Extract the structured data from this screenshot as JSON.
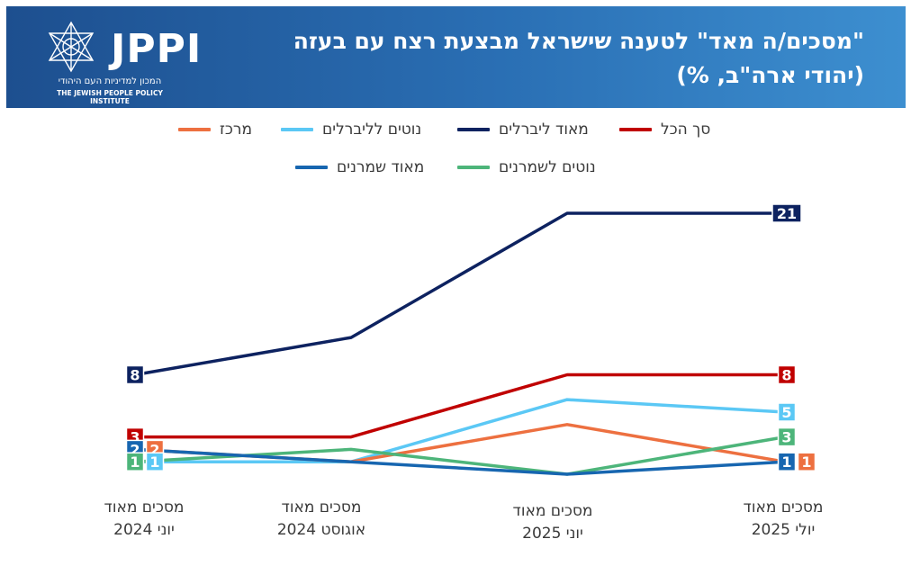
{
  "header": {
    "title_line1": "\"מסכים/ה מאד\" לטענה שישראל מבצעת רצח עם בעזה",
    "title_line2": "(יהודי ארה\"ב, %)",
    "logo": {
      "name": "JPPI",
      "subtitle_he": "המכון למדיניות העם היהודי",
      "subtitle_en": "THE JEWISH PEOPLE POLICY INSTITUTE"
    }
  },
  "colors": {
    "header_start": "#1d4f8f",
    "header_end": "#3d8fd0"
  },
  "chart_data": {
    "type": "line",
    "categories": [
      "מסכים מאוד יוני 2024",
      "מסכים מאוד אוגוסט 2024",
      "מסכים מאוד יוני 2025",
      "מסכים מאוד יולי 2025"
    ],
    "category_lines": [
      [
        "מסכים מאוד",
        "יוני 2024"
      ],
      [
        "מסכים מאוד",
        "אוגוסט 2024"
      ],
      [
        "מסכים מאוד",
        "יוני 2025"
      ],
      [
        "מסכים מאוד",
        "יולי 2025"
      ]
    ],
    "series": [
      {
        "name": "סך הכל",
        "color": "#c00000",
        "values": [
          3,
          3,
          8,
          8
        ]
      },
      {
        "name": "מאוד ליברלים",
        "color": "#0d2260",
        "values": [
          8,
          11,
          21,
          21
        ]
      },
      {
        "name": "נוטים לליברלים",
        "color": "#5bc8f5",
        "values": [
          1,
          1,
          6,
          5
        ]
      },
      {
        "name": "מרכז",
        "color": "#ed7040",
        "values": [
          2,
          1,
          4,
          1
        ]
      },
      {
        "name": "נוטים לשמרנים",
        "color": "#4db57a",
        "values": [
          1,
          2,
          0,
          3
        ]
      },
      {
        "name": "מאוד שמרנים",
        "color": "#1766b0",
        "values": [
          2,
          1,
          0,
          1
        ]
      }
    ],
    "end_labels": [
      {
        "series": 0,
        "point": 0,
        "text": "3"
      },
      {
        "series": 1,
        "point": 0,
        "text": "8"
      },
      {
        "series": 5,
        "point": 0,
        "text": "2"
      },
      {
        "series": 3,
        "point": 0,
        "text": "2"
      },
      {
        "series": 4,
        "point": 0,
        "text": "1"
      },
      {
        "series": 2,
        "point": 0,
        "text": "1"
      },
      {
        "series": 1,
        "point": 3,
        "text": "21"
      },
      {
        "series": 0,
        "point": 3,
        "text": "8"
      },
      {
        "series": 2,
        "point": 3,
        "text": "5"
      },
      {
        "series": 4,
        "point": 3,
        "text": "3"
      },
      {
        "series": 5,
        "point": 3,
        "text": "1"
      },
      {
        "series": 3,
        "point": 3,
        "text": "1"
      }
    ],
    "ylim": [
      0,
      22
    ],
    "grid": false,
    "legend": "top"
  }
}
